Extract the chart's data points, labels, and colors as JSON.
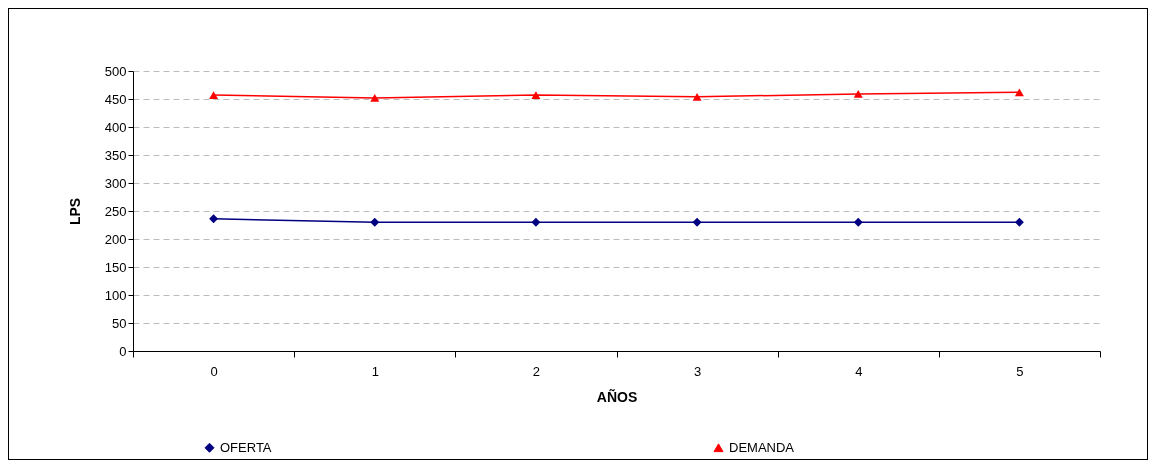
{
  "chart_data": {
    "type": "line",
    "xlabel": "AÑOS",
    "ylabel": "LPS",
    "categories": [
      "0",
      "1",
      "2",
      "3",
      "4",
      "5"
    ],
    "series": [
      {
        "name": "OFERTA",
        "color": "#000080",
        "marker": "diamond",
        "values": [
          236,
          230,
          230,
          230,
          230,
          230
        ]
      },
      {
        "name": "DEMANDA",
        "color": "#ff0000",
        "marker": "triangle",
        "values": [
          457,
          452,
          457,
          454,
          459,
          462
        ]
      }
    ],
    "ylim": [
      0,
      500
    ],
    "yticks": [
      0,
      50,
      100,
      150,
      200,
      250,
      300,
      350,
      400,
      450,
      500
    ],
    "grid": "y",
    "legend": "bottom"
  }
}
